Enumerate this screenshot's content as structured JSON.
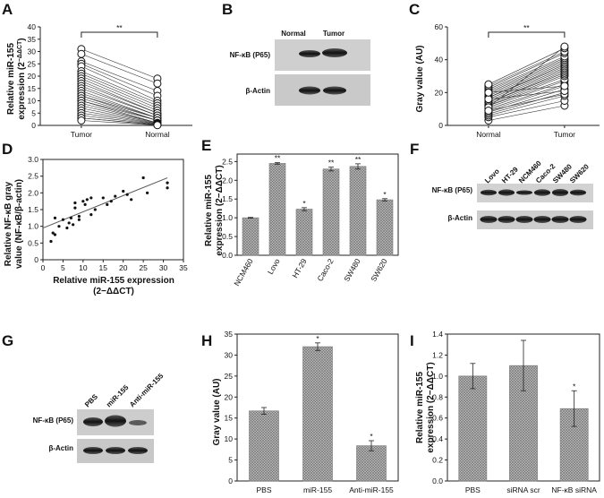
{
  "panels": {
    "A": {
      "letter": "A",
      "ylabel_line1": "Relative miR-155",
      "ylabel_line2": "expression (2",
      "ylabel_sup": "−ΔΔCT",
      "ylabel_close": ")",
      "significance": "**"
    },
    "B": {
      "letter": "B",
      "lanes": [
        "Normal",
        "Tumor"
      ],
      "rows": [
        "NF-κB (P65)",
        "β-Actin"
      ]
    },
    "C": {
      "letter": "C",
      "ylabel": "Gray value (AU)",
      "significance": "**"
    },
    "D": {
      "letter": "D",
      "ylabel_line1": "Relative NF-κB gray",
      "ylabel_line2": "value (NF-κB/β-actin)",
      "xlabel_line1": "Relative miR-155 expression",
      "xlabel_line2": "(2−ΔΔCT)"
    },
    "E": {
      "letter": "E",
      "ylabel_line1": "Relative miR-155",
      "ylabel_line2": "expression (2−ΔΔCT)"
    },
    "F": {
      "letter": "F",
      "lanes": [
        "Lovo",
        "HT-29",
        "NCM460",
        "Caco-2",
        "SW480",
        "SW620"
      ],
      "rows": [
        "NF-κB (P65)",
        "β-Actin"
      ]
    },
    "G": {
      "letter": "G",
      "lanes": [
        "PBS",
        "miR-155",
        "Anti-miR-155"
      ],
      "rows": [
        "NF-κB (P65)",
        "β-Actin"
      ]
    },
    "H": {
      "letter": "H",
      "ylabel": "Gray value (AU)"
    },
    "I": {
      "letter": "I",
      "ylabel_line1": "Relative miR-155",
      "ylabel_line2": "expression (2−ΔΔCT)"
    }
  },
  "chart_data": [
    {
      "id": "A",
      "type": "scatter",
      "title": "",
      "categories": [
        "Tumor",
        "Normal"
      ],
      "ylabel": "Relative miR-155 expression (2−ΔΔCT)",
      "ylim": [
        0,
        40
      ],
      "yticks": [
        0,
        5,
        10,
        15,
        20,
        25,
        30,
        35,
        40
      ],
      "paired": [
        [
          31,
          19
        ],
        [
          29,
          17
        ],
        [
          26,
          14
        ],
        [
          25,
          12
        ],
        [
          24,
          10
        ],
        [
          22,
          9
        ],
        [
          21,
          8
        ],
        [
          20,
          7
        ],
        [
          19,
          6
        ],
        [
          18,
          5
        ],
        [
          17,
          5
        ],
        [
          16,
          4
        ],
        [
          15,
          4
        ],
        [
          14,
          3
        ],
        [
          13,
          3
        ],
        [
          12,
          3
        ],
        [
          12,
          2
        ],
        [
          11,
          2
        ],
        [
          10,
          2
        ],
        [
          10,
          1
        ],
        [
          9,
          1
        ],
        [
          8,
          1
        ],
        [
          7,
          0.8
        ],
        [
          6,
          0.6
        ],
        [
          5,
          0.5
        ],
        [
          4,
          0.4
        ],
        [
          3,
          0.3
        ],
        [
          3,
          0.2
        ],
        [
          2,
          0.1
        ]
      ],
      "significance": "**"
    },
    {
      "id": "C",
      "type": "scatter",
      "categories": [
        "Normal",
        "Tumor"
      ],
      "ylabel": "Gray value (AU)",
      "ylim": [
        0,
        60
      ],
      "yticks": [
        0,
        20,
        40,
        60
      ],
      "paired": [
        [
          3,
          12
        ],
        [
          5,
          15
        ],
        [
          6,
          18
        ],
        [
          7,
          20
        ],
        [
          8,
          22
        ],
        [
          9,
          24
        ],
        [
          10,
          25
        ],
        [
          11,
          27
        ],
        [
          12,
          28
        ],
        [
          12,
          30
        ],
        [
          13,
          31
        ],
        [
          14,
          32
        ],
        [
          14,
          33
        ],
        [
          15,
          34
        ],
        [
          16,
          35
        ],
        [
          17,
          36
        ],
        [
          17,
          37
        ],
        [
          18,
          38
        ],
        [
          19,
          39
        ],
        [
          20,
          40
        ],
        [
          21,
          41
        ],
        [
          22,
          42
        ],
        [
          23,
          44
        ],
        [
          24,
          45
        ],
        [
          25,
          47
        ],
        [
          11,
          48
        ],
        [
          9,
          19
        ],
        [
          16,
          21
        ],
        [
          20,
          24
        ]
      ],
      "significance": "**"
    },
    {
      "id": "D",
      "type": "scatter",
      "xlabel": "Relative miR-155 expression (2−ΔΔCT)",
      "ylabel": "Relative NF-κB gray value (NF-κB/β-actin)",
      "xlim": [
        0,
        35
      ],
      "ylim": [
        0,
        3.0
      ],
      "xticks": [
        0,
        5,
        10,
        15,
        20,
        25,
        30,
        35
      ],
      "yticks": [
        0,
        0.5,
        1.0,
        1.5,
        2.0,
        2.5,
        3.0
      ],
      "x": [
        2,
        2.5,
        3,
        3,
        4,
        5,
        6,
        6.5,
        7,
        7.5,
        8,
        8,
        9,
        9,
        10,
        10.5,
        11,
        12,
        12,
        13,
        15,
        16,
        17,
        18,
        20,
        21,
        22,
        25,
        26,
        31,
        31
      ],
      "y": [
        0.55,
        0.8,
        0.75,
        1.25,
        1.0,
        1.2,
        0.95,
        1.1,
        1.25,
        1.05,
        1.7,
        1.55,
        1.2,
        1.3,
        1.75,
        1.65,
        1.8,
        1.85,
        1.35,
        1.5,
        1.85,
        1.65,
        1.75,
        1.9,
        2.05,
        1.95,
        1.8,
        2.45,
        2.0,
        2.3,
        2.15
      ],
      "fit": [
        [
          0,
          0.95
        ],
        [
          31,
          2.45
        ]
      ]
    },
    {
      "id": "E",
      "type": "bar",
      "categories": [
        "NCM460",
        "Lovo",
        "HT-29",
        "Caco-2",
        "SW480",
        "SW620"
      ],
      "values": [
        1.0,
        2.45,
        1.23,
        2.3,
        2.37,
        1.48
      ],
      "errors": [
        0.01,
        0.02,
        0.04,
        0.05,
        0.07,
        0.03
      ],
      "sig": [
        "",
        "**",
        "*",
        "**",
        "**",
        "*"
      ],
      "ylabel": "Relative miR-155 expression (2−ΔΔCT)",
      "ylim": [
        0,
        2.7
      ],
      "yticks": [
        0,
        0.5,
        1.0,
        1.5,
        2.0,
        2.5
      ]
    },
    {
      "id": "H",
      "type": "bar",
      "categories": [
        "PBS",
        "miR-155",
        "Anti-miR-155"
      ],
      "values": [
        16.7,
        32.0,
        8.4
      ],
      "errors": [
        0.8,
        0.9,
        1.2
      ],
      "sig": [
        "",
        "*",
        "*"
      ],
      "ylabel": "Gray value (AU)",
      "ylim": [
        0,
        35
      ],
      "yticks": [
        0,
        5,
        10,
        15,
        20,
        25,
        30,
        35
      ]
    },
    {
      "id": "I",
      "type": "bar",
      "categories": [
        "PBS",
        "siRNA scr",
        "NF-κB siRNA"
      ],
      "values": [
        1.0,
        1.1,
        0.69
      ],
      "errors": [
        0.12,
        0.24,
        0.17
      ],
      "sig": [
        "",
        "",
        "*"
      ],
      "ylabel": "Relative miR-155 expression (2−ΔΔCT)",
      "ylim": [
        0,
        1.4
      ],
      "yticks": [
        0,
        0.2,
        0.4,
        0.6,
        0.8,
        1.0,
        1.2,
        1.4
      ]
    }
  ]
}
